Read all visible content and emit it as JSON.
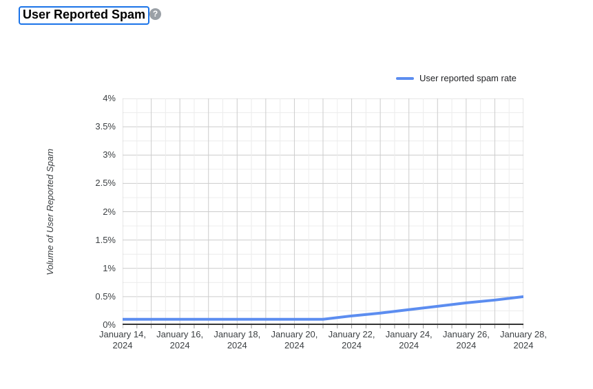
{
  "header": {
    "title": "User Reported Spam",
    "help_glyph": "?"
  },
  "colors": {
    "title_outline": "#1a73e8",
    "help_icon_bg": "#9aa0a6",
    "line": "#5c8df0",
    "grid_major": "#cccccc",
    "grid_minor": "#ececec",
    "axis": "#333333",
    "tick_mark": "#999999",
    "axis_text": "#3c4043"
  },
  "chart_data": {
    "type": "line",
    "title": "User Reported Spam",
    "xlabel": "",
    "ylabel": "Volume of User Reported Spam",
    "ylim": [
      0,
      4
    ],
    "grid": "on",
    "legend_position": "top-right",
    "legend": "User reported spam rate",
    "x": [
      "January 14, 2024",
      "January 15, 2024",
      "January 16, 2024",
      "January 17, 2024",
      "January 18, 2024",
      "January 19, 2024",
      "January 20, 2024",
      "January 21, 2024",
      "January 22, 2024",
      "January 23, 2024",
      "January 24, 2024",
      "January 25, 2024",
      "January 26, 2024",
      "January 27, 2024",
      "January 28, 2024"
    ],
    "series": [
      {
        "name": "User reported spam rate",
        "unit": "%",
        "values": [
          0.1,
          0.1,
          0.1,
          0.1,
          0.1,
          0.1,
          0.1,
          0.1,
          0.16,
          0.21,
          0.27,
          0.33,
          0.39,
          0.44,
          0.5
        ]
      }
    ],
    "y_ticks": [
      {
        "value": 0,
        "label": "0%"
      },
      {
        "value": 0.5,
        "label": "0.5%"
      },
      {
        "value": 1,
        "label": "1%"
      },
      {
        "value": 1.5,
        "label": "1.5%"
      },
      {
        "value": 2,
        "label": "2%"
      },
      {
        "value": 2.5,
        "label": "2.5%"
      },
      {
        "value": 3,
        "label": "3%"
      },
      {
        "value": 3.5,
        "label": "3.5%"
      },
      {
        "value": 4,
        "label": "4%"
      }
    ],
    "x_ticks": [
      {
        "day": 0,
        "label": "January 14,\n2024"
      },
      {
        "day": 2,
        "label": "January 16,\n2024"
      },
      {
        "day": 4,
        "label": "January 18,\n2024"
      },
      {
        "day": 6,
        "label": "January 20,\n2024"
      },
      {
        "day": 8,
        "label": "January 22,\n2024"
      },
      {
        "day": 10,
        "label": "January 24,\n2024"
      },
      {
        "day": 12,
        "label": "January 26,\n2024"
      },
      {
        "day": 14,
        "label": "January 28,\n2024"
      }
    ]
  }
}
